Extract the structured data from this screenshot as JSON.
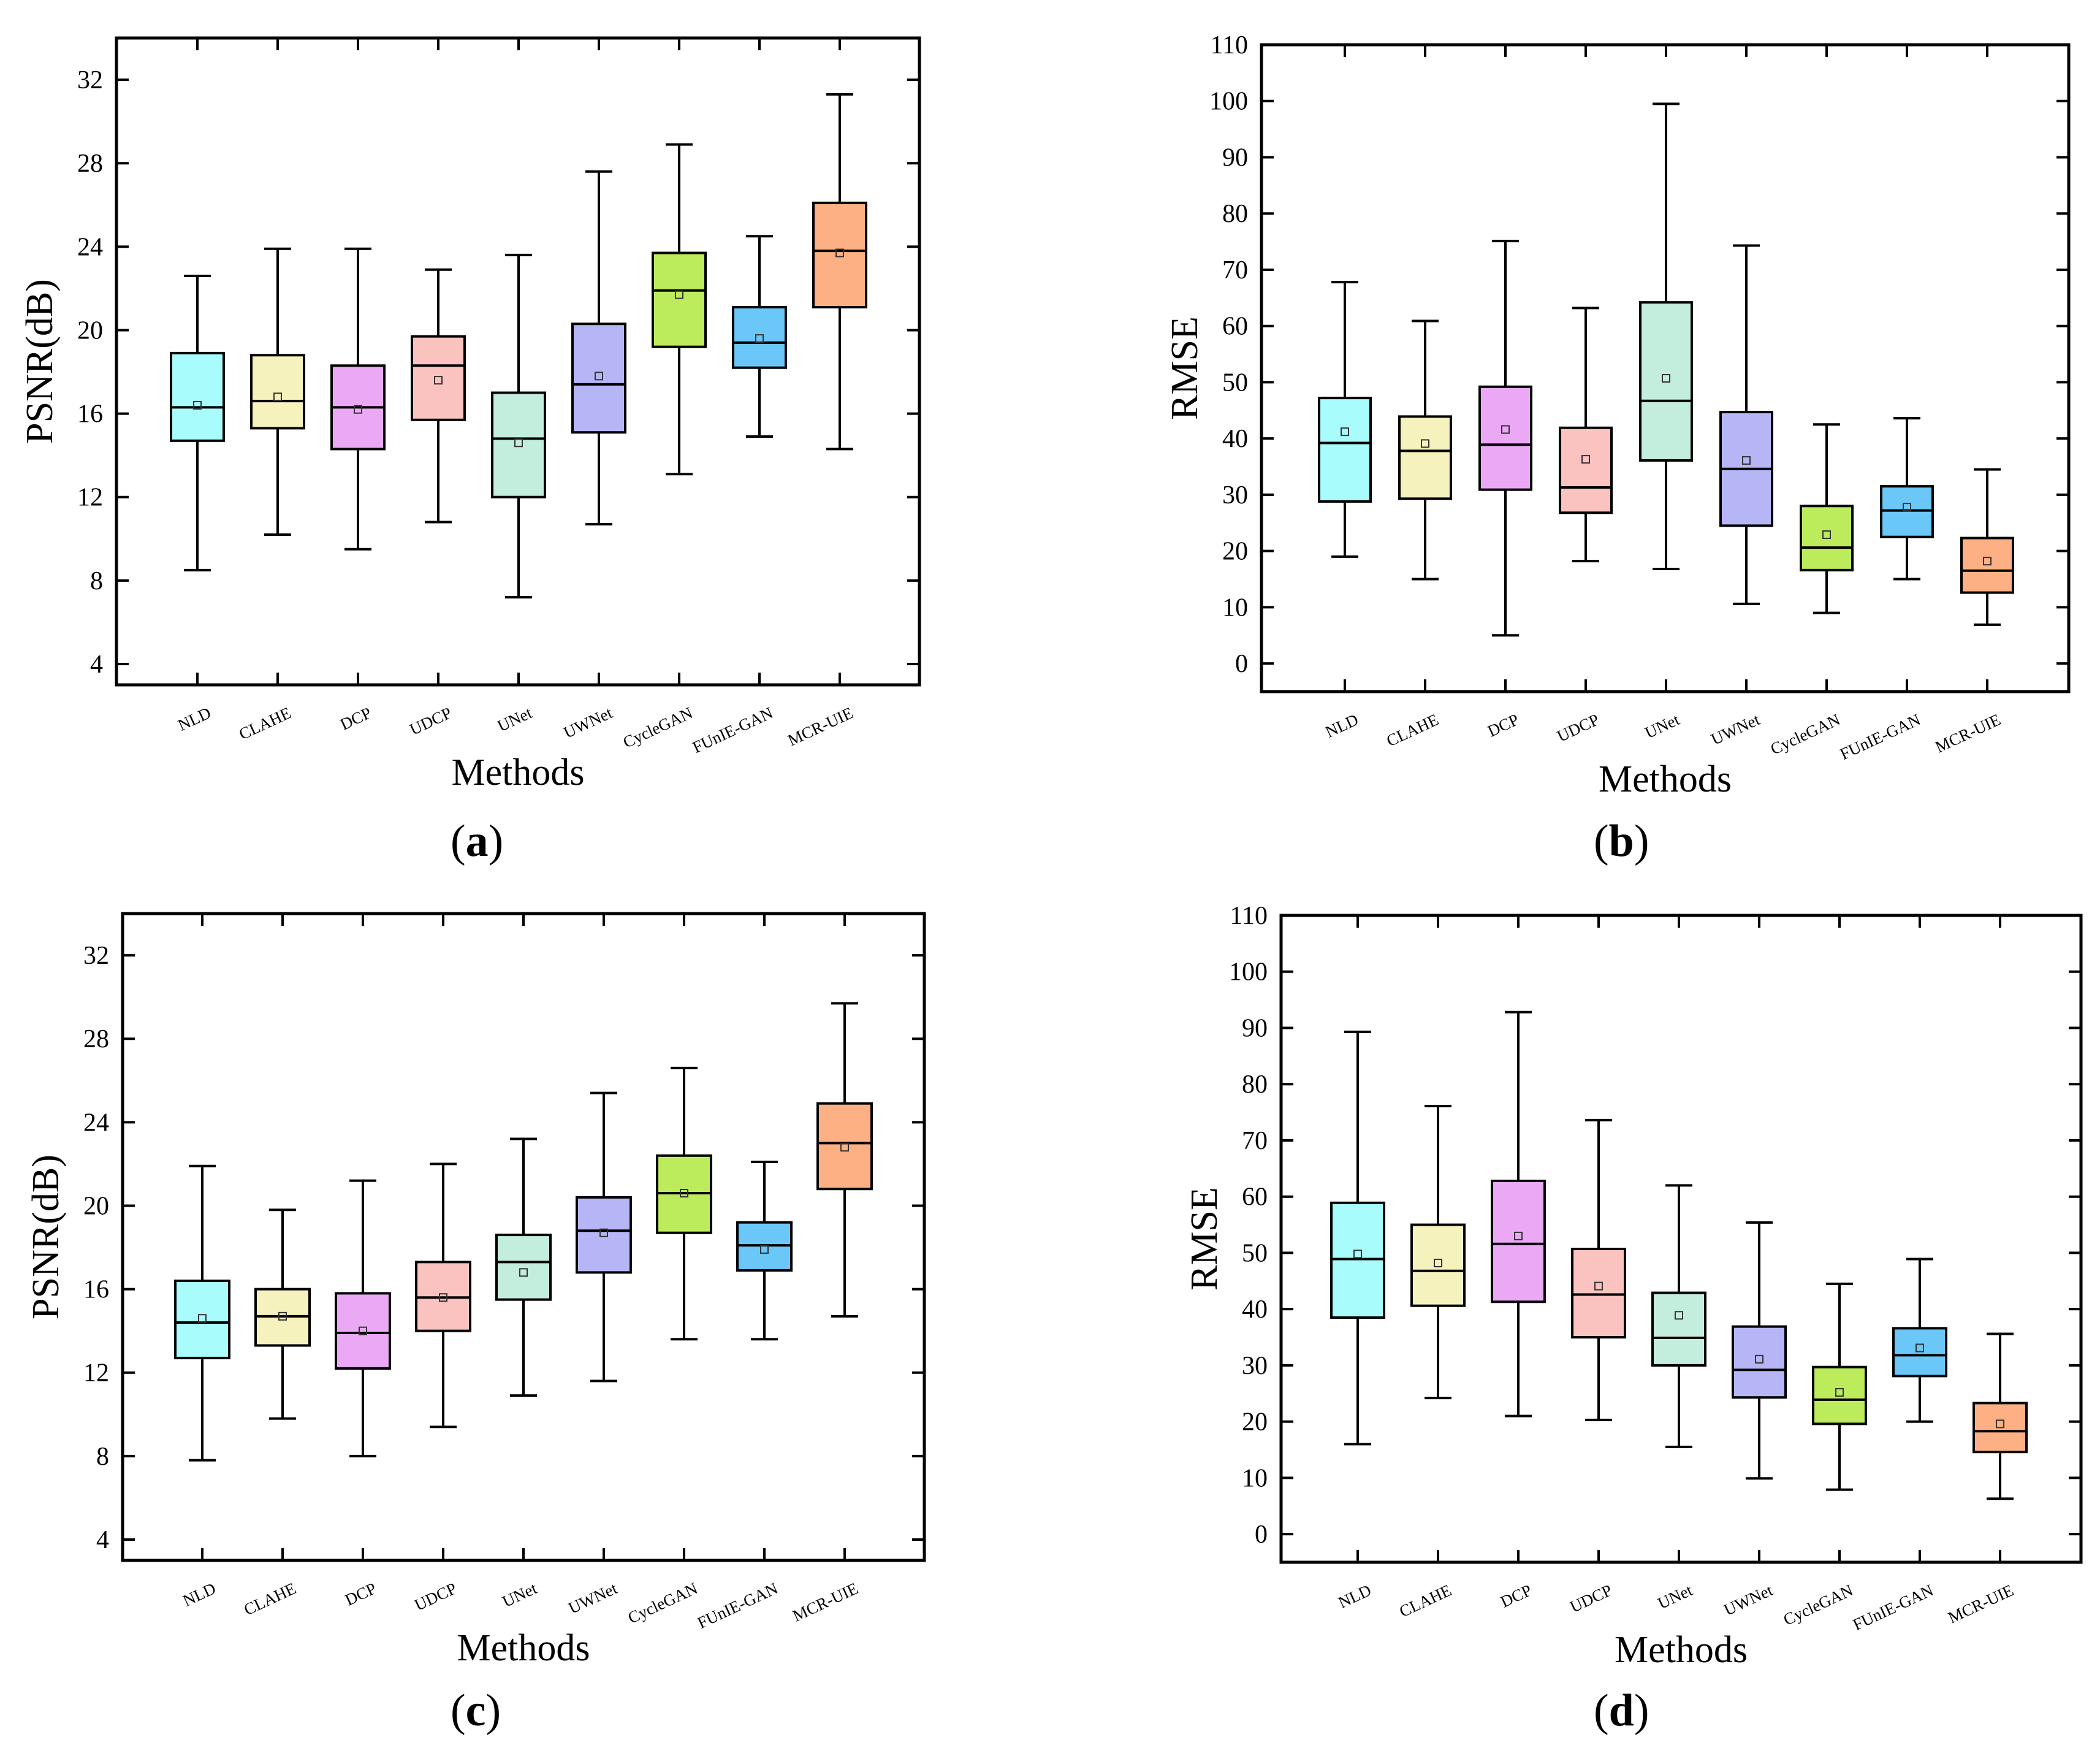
{
  "figure": {
    "panel_labels": [
      {
        "open": "(",
        "letter": "a",
        "close": ")"
      },
      {
        "open": "(",
        "letter": "b",
        "close": ")"
      },
      {
        "open": "(",
        "letter": "c",
        "close": ")"
      },
      {
        "open": "(",
        "letter": "d",
        "close": ")"
      }
    ]
  },
  "chart_data": [
    {
      "type": "box",
      "panel": "a",
      "xlabel": "Methods",
      "ylabel": "PSNR(dB)",
      "ylim": [
        3,
        34
      ],
      "yticks": [
        4,
        8,
        12,
        16,
        20,
        24,
        28,
        32
      ],
      "categories": [
        "NLD",
        "CLAHE",
        "DCP",
        "UDCP",
        "UNet",
        "UWNet",
        "CycleGAN",
        "FUnIE-GAN",
        "MCR-UIE"
      ],
      "colors": [
        "#a9fcfc",
        "#f6f2bd",
        "#eba8f5",
        "#fbc3c0",
        "#c3eddc",
        "#b6b6f7",
        "#bcec5c",
        "#6ac7f7",
        "#fcb083"
      ],
      "boxes": [
        {
          "whisker_low": 8.5,
          "q1": 14.7,
          "median": 16.3,
          "q3": 18.9,
          "whisker_high": 22.6,
          "mean": 16.4
        },
        {
          "whisker_low": 10.2,
          "q1": 15.3,
          "median": 16.6,
          "q3": 18.8,
          "whisker_high": 23.9,
          "mean": 16.8
        },
        {
          "whisker_low": 9.5,
          "q1": 14.3,
          "median": 16.3,
          "q3": 18.3,
          "whisker_high": 23.9,
          "mean": 16.2
        },
        {
          "whisker_low": 10.8,
          "q1": 15.7,
          "median": 18.3,
          "q3": 19.7,
          "whisker_high": 22.9,
          "mean": 17.6
        },
        {
          "whisker_low": 7.2,
          "q1": 12.0,
          "median": 14.8,
          "q3": 17.0,
          "whisker_high": 23.6,
          "mean": 14.6
        },
        {
          "whisker_low": 10.7,
          "q1": 15.1,
          "median": 17.4,
          "q3": 20.3,
          "whisker_high": 27.6,
          "mean": 17.8
        },
        {
          "whisker_low": 13.1,
          "q1": 19.2,
          "median": 21.9,
          "q3": 23.7,
          "whisker_high": 28.9,
          "mean": 21.7
        },
        {
          "whisker_low": 14.9,
          "q1": 18.2,
          "median": 19.4,
          "q3": 21.1,
          "whisker_high": 24.5,
          "mean": 19.6
        },
        {
          "whisker_low": 14.3,
          "q1": 21.1,
          "median": 23.8,
          "q3": 26.1,
          "whisker_high": 31.3,
          "mean": 23.7
        }
      ]
    },
    {
      "type": "box",
      "panel": "b",
      "xlabel": "Methods",
      "ylabel": "RMSE",
      "ylim": [
        -5,
        110
      ],
      "yticks": [
        0,
        10,
        20,
        30,
        40,
        50,
        60,
        70,
        80,
        90,
        100,
        110
      ],
      "categories": [
        "NLD",
        "CLAHE",
        "DCP",
        "UDCP",
        "UNet",
        "UWNet",
        "CycleGAN",
        "FUnIE-GAN",
        "MCR-UIE"
      ],
      "colors": [
        "#a9fcfc",
        "#f6f2bd",
        "#eba8f5",
        "#fbc3c0",
        "#c3eddc",
        "#b6b6f7",
        "#bcec5c",
        "#6ac7f7",
        "#fcb083"
      ],
      "boxes": [
        {
          "whisker_low": 19.0,
          "q1": 28.8,
          "median": 39.2,
          "q3": 47.2,
          "whisker_high": 67.8,
          "mean": 41.2
        },
        {
          "whisker_low": 15.0,
          "q1": 29.3,
          "median": 37.8,
          "q3": 43.9,
          "whisker_high": 60.9,
          "mean": 39.1
        },
        {
          "whisker_low": 5.0,
          "q1": 30.9,
          "median": 38.9,
          "q3": 49.2,
          "whisker_high": 75.1,
          "mean": 41.6
        },
        {
          "whisker_low": 18.2,
          "q1": 26.8,
          "median": 31.3,
          "q3": 41.9,
          "whisker_high": 63.2,
          "mean": 36.3
        },
        {
          "whisker_low": 16.8,
          "q1": 36.1,
          "median": 46.7,
          "q3": 64.2,
          "whisker_high": 99.5,
          "mean": 50.7
        },
        {
          "whisker_low": 10.6,
          "q1": 24.5,
          "median": 34.6,
          "q3": 44.7,
          "whisker_high": 74.3,
          "mean": 36.1
        },
        {
          "whisker_low": 9.0,
          "q1": 16.6,
          "median": 20.6,
          "q3": 28.0,
          "whisker_high": 42.5,
          "mean": 22.9
        },
        {
          "whisker_low": 15.0,
          "q1": 22.5,
          "median": 27.2,
          "q3": 31.5,
          "whisker_high": 43.6,
          "mean": 27.8
        },
        {
          "whisker_low": 6.9,
          "q1": 12.6,
          "median": 16.5,
          "q3": 22.3,
          "whisker_high": 34.5,
          "mean": 18.2
        }
      ]
    },
    {
      "type": "box",
      "panel": "c",
      "xlabel": "Methods",
      "ylabel": "PSNR(dB)",
      "ylim": [
        3,
        34
      ],
      "yticks": [
        4,
        8,
        12,
        16,
        20,
        24,
        28,
        32
      ],
      "categories": [
        "NLD",
        "CLAHE",
        "DCP",
        "UDCP",
        "UNet",
        "UWNet",
        "CycleGAN",
        "FUnIE-GAN",
        "MCR-UIE"
      ],
      "colors": [
        "#a9fcfc",
        "#f6f2bd",
        "#eba8f5",
        "#fbc3c0",
        "#c3eddc",
        "#b6b6f7",
        "#bcec5c",
        "#6ac7f7",
        "#fcb083"
      ],
      "boxes": [
        {
          "whisker_low": 7.8,
          "q1": 12.7,
          "median": 14.4,
          "q3": 16.4,
          "whisker_high": 21.9,
          "mean": 14.6
        },
        {
          "whisker_low": 9.8,
          "q1": 13.3,
          "median": 14.7,
          "q3": 16.0,
          "whisker_high": 19.8,
          "mean": 14.7
        },
        {
          "whisker_low": 8.0,
          "q1": 12.2,
          "median": 13.9,
          "q3": 15.8,
          "whisker_high": 21.2,
          "mean": 14.0
        },
        {
          "whisker_low": 9.4,
          "q1": 14.0,
          "median": 15.6,
          "q3": 17.3,
          "whisker_high": 22.0,
          "mean": 15.6
        },
        {
          "whisker_low": 10.9,
          "q1": 15.5,
          "median": 17.3,
          "q3": 18.6,
          "whisker_high": 23.2,
          "mean": 16.8
        },
        {
          "whisker_low": 11.6,
          "q1": 16.8,
          "median": 18.8,
          "q3": 20.4,
          "whisker_high": 25.4,
          "mean": 18.7
        },
        {
          "whisker_low": 13.6,
          "q1": 18.7,
          "median": 20.6,
          "q3": 22.4,
          "whisker_high": 26.6,
          "mean": 20.6
        },
        {
          "whisker_low": 13.6,
          "q1": 16.9,
          "median": 18.1,
          "q3": 19.2,
          "whisker_high": 22.1,
          "mean": 17.9
        },
        {
          "whisker_low": 14.7,
          "q1": 20.8,
          "median": 23.0,
          "q3": 24.9,
          "whisker_high": 29.7,
          "mean": 22.8
        }
      ]
    },
    {
      "type": "box",
      "panel": "d",
      "xlabel": "Methods",
      "ylabel": "RMSE",
      "ylim": [
        -5,
        110
      ],
      "yticks": [
        0,
        10,
        20,
        30,
        40,
        50,
        60,
        70,
        80,
        90,
        100,
        110
      ],
      "categories": [
        "NLD",
        "CLAHE",
        "DCP",
        "UDCP",
        "UNet",
        "UWNet",
        "CycleGAN",
        "FUnIE-GAN",
        "MCR-UIE"
      ],
      "colors": [
        "#a9fcfc",
        "#f6f2bd",
        "#eba8f5",
        "#fbc3c0",
        "#c3eddc",
        "#b6b6f7",
        "#bcec5c",
        "#6ac7f7",
        "#fcb083"
      ],
      "boxes": [
        {
          "whisker_low": 16.0,
          "q1": 38.5,
          "median": 48.9,
          "q3": 58.9,
          "whisker_high": 89.3,
          "mean": 49.8
        },
        {
          "whisker_low": 24.2,
          "q1": 40.6,
          "median": 46.8,
          "q3": 55.0,
          "whisker_high": 76.1,
          "mean": 48.2
        },
        {
          "whisker_low": 21.0,
          "q1": 41.3,
          "median": 51.6,
          "q3": 62.8,
          "whisker_high": 92.8,
          "mean": 53.0
        },
        {
          "whisker_low": 20.3,
          "q1": 35.0,
          "median": 42.6,
          "q3": 50.7,
          "whisker_high": 73.6,
          "mean": 44.1
        },
        {
          "whisker_low": 15.5,
          "q1": 30.0,
          "median": 34.9,
          "q3": 42.9,
          "whisker_high": 62.0,
          "mean": 38.9
        },
        {
          "whisker_low": 9.9,
          "q1": 24.3,
          "median": 29.2,
          "q3": 36.9,
          "whisker_high": 55.4,
          "mean": 31.1
        },
        {
          "whisker_low": 7.9,
          "q1": 19.6,
          "median": 23.9,
          "q3": 29.7,
          "whisker_high": 44.5,
          "mean": 25.2
        },
        {
          "whisker_low": 20.0,
          "q1": 28.1,
          "median": 31.8,
          "q3": 36.6,
          "whisker_high": 48.9,
          "mean": 33.1
        },
        {
          "whisker_low": 6.3,
          "q1": 14.6,
          "median": 18.3,
          "q3": 23.3,
          "whisker_high": 35.6,
          "mean": 19.6
        }
      ]
    }
  ]
}
